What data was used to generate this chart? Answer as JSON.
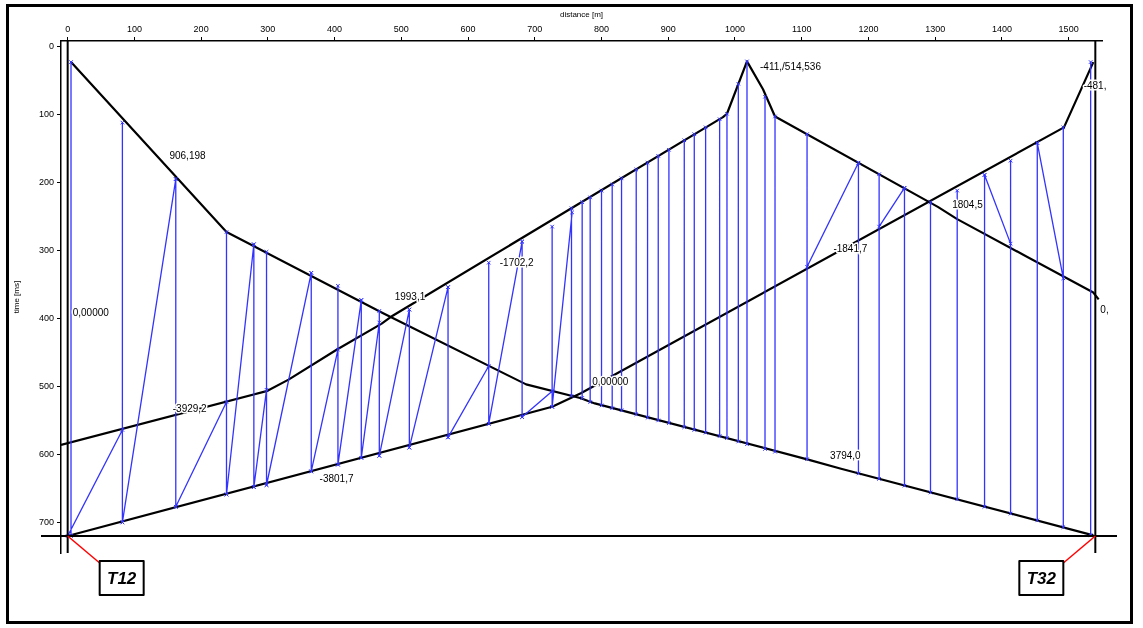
{
  "chart_data": {
    "type": "line",
    "xlabel": "distance [m]",
    "ylabel": "time [ms]",
    "xlim": [
      -10,
      1550
    ],
    "xticks": [
      0,
      100,
      200,
      300,
      400,
      500,
      600,
      700,
      800,
      900,
      1000,
      1100,
      1200,
      1300,
      1400,
      1500
    ],
    "ylim": [
      745,
      -8
    ],
    "yticks": [
      0,
      100,
      200,
      300,
      400,
      500,
      600,
      700
    ],
    "grid": false,
    "legend": false,
    "line_style": "solid",
    "series": [
      {
        "color": "#3333ff",
        "marker": "cross",
        "x": [
          5,
          5,
          null,
          82,
          82,
          null,
          162,
          162,
          null,
          238,
          238,
          null,
          279,
          279,
          null,
          298,
          298,
          null,
          365,
          365,
          null,
          405,
          405,
          null,
          440,
          440,
          null,
          467,
          467,
          null,
          512,
          512,
          null,
          570,
          570,
          null,
          631,
          631,
          null,
          681,
          681,
          null,
          726,
          726,
          null,
          755,
          755,
          null,
          771,
          771,
          null,
          783,
          783,
          null,
          800,
          800,
          null,
          816,
          816,
          null,
          830,
          830,
          null,
          852,
          852,
          null,
          869,
          869,
          null,
          885,
          885,
          null,
          901,
          901,
          null,
          924,
          924,
          null,
          939,
          939,
          null,
          956,
          956,
          null,
          977,
          977,
          null,
          988,
          988,
          null,
          1005,
          1005,
          null,
          1018,
          1018,
          null,
          1045,
          1045,
          null,
          1060,
          1060,
          null,
          1108,
          1108,
          null,
          1185,
          1185,
          null,
          1216,
          1216,
          null,
          1254,
          1254,
          null,
          1293,
          1293,
          null,
          1333,
          1333,
          null,
          1374,
          1374,
          null,
          1413,
          1413,
          null,
          1453,
          1453,
          null,
          1492,
          1492,
          null,
          1533,
          1533,
          null,
          0,
          82,
          null,
          82,
          162,
          null,
          162,
          238,
          null,
          238,
          279,
          null,
          279,
          298,
          null,
          298,
          365,
          null,
          365,
          405,
          null,
          405,
          440,
          null,
          440,
          467,
          null,
          467,
          512,
          null,
          512,
          570,
          null,
          570,
          631,
          null,
          631,
          681,
          null,
          681,
          726,
          null,
          726,
          756,
          null,
          1108,
          1185,
          null,
          1216,
          1254,
          null,
          1374,
          1413,
          null,
          1453,
          1492
        ],
        "values": [
          23,
          720,
          null,
          112,
          700,
          null,
          195,
          677,
          null,
          273,
          659,
          null,
          291,
          648,
          null,
          302,
          645,
          null,
          333,
          625,
          null,
          352,
          615,
          null,
          373,
          605,
          null,
          389,
          602,
          null,
          387,
          590,
          null,
          354,
          575,
          null,
          318,
          555,
          null,
          287,
          545,
          null,
          265,
          530,
          null,
          238,
          514,
          null,
          229,
          517,
          null,
          222,
          523,
          null,
          212,
          528,
          null,
          203,
          532,
          null,
          194,
          535,
          null,
          181,
          541,
          null,
          171,
          546,
          null,
          161,
          550,
          null,
          152,
          554,
          null,
          138,
          560,
          null,
          129,
          564,
          null,
          119,
          568,
          null,
          107,
          573,
          null,
          99,
          576,
          null,
          55,
          581,
          null,
          22,
          585,
          null,
          74,
          592,
          null,
          103,
          596,
          null,
          129,
          607,
          null,
          171,
          628,
          null,
          188,
          636,
          null,
          208,
          646,
          null,
          229,
          656,
          null,
          212,
          666,
          null,
          189,
          677,
          null,
          168,
          687,
          null,
          142,
          697,
          null,
          119,
          707,
          null,
          23,
          719,
          null,
          720,
          564,
          null,
          700,
          195,
          null,
          677,
          523,
          null,
          659,
          291,
          null,
          648,
          505,
          null,
          645,
          333,
          null,
          625,
          446,
          null,
          615,
          373,
          null,
          605,
          406,
          null,
          602,
          387,
          null,
          590,
          354,
          null,
          575,
          470,
          null,
          555,
          287,
          null,
          545,
          507,
          null,
          530,
          244,
          null,
          324,
          171,
          null,
          265,
          208,
          null,
          189,
          290,
          null,
          142,
          341
        ]
      },
      {
        "color": "#000000",
        "x": [
          -10,
          298,
          331,
          403,
          470,
          487,
          982,
          988,
          1018,
          1042,
          1060,
          1304,
          1333,
          1537,
          1545
        ],
        "values": [
          586,
          507,
          490,
          446,
          408,
          396,
          104,
          99,
          22,
          63,
          103,
          236,
          254,
          362,
          372
        ]
      },
      {
        "color": "#000000",
        "x": [
          5,
          238,
          472,
          687,
          768,
          790,
          1111,
          1159,
          1537
        ],
        "values": [
          23,
          273,
          392,
          497,
          517,
          525,
          608,
          621,
          719
        ]
      },
      {
        "color": "#000000",
        "x": [
          0,
          726,
          769,
          1493,
          1537
        ],
        "values": [
          720,
          530,
          510,
          119,
          23
        ]
      }
    ],
    "ref_lines": [
      {
        "axis": "x",
        "value": 0,
        "color": "#000000"
      },
      {
        "axis": "x",
        "value": 1540,
        "color": "#000000"
      },
      {
        "axis": "y",
        "value": 720,
        "color": "#000000"
      }
    ],
    "annotations": [
      {
        "text": "906,198",
        "x": 145,
        "y": 173
      },
      {
        "text": "1993,1",
        "x": 472,
        "y": 392
      },
      {
        "text": "-1702,2",
        "x": 640,
        "y": 306
      },
      {
        "text": "-3929,2",
        "x": 150,
        "y": 545
      },
      {
        "text": "0,00000",
        "x": 0,
        "y": 404
      },
      {
        "text": "-3801,7",
        "x": 370,
        "y": 623
      },
      {
        "text": "0,00000",
        "x": 768,
        "y": 517
      },
      {
        "text": "3794,0",
        "x": 1135,
        "y": 614
      },
      {
        "text": "-1841,7",
        "x": 1140,
        "y": 310
      },
      {
        "text": "1804,5",
        "x": 1318,
        "y": 245
      },
      {
        "text": "-411,/514,536",
        "x": 1030,
        "y": 43
      },
      {
        "text": "-481,",
        "x": 1515,
        "y": 71
      },
      {
        "text": "0,",
        "x": 1540,
        "y": 400
      },
      {
        "text": "T12",
        "x": 0,
        "y": 720
      },
      {
        "text": "T32",
        "x": 1540,
        "y": 720
      }
    ]
  }
}
